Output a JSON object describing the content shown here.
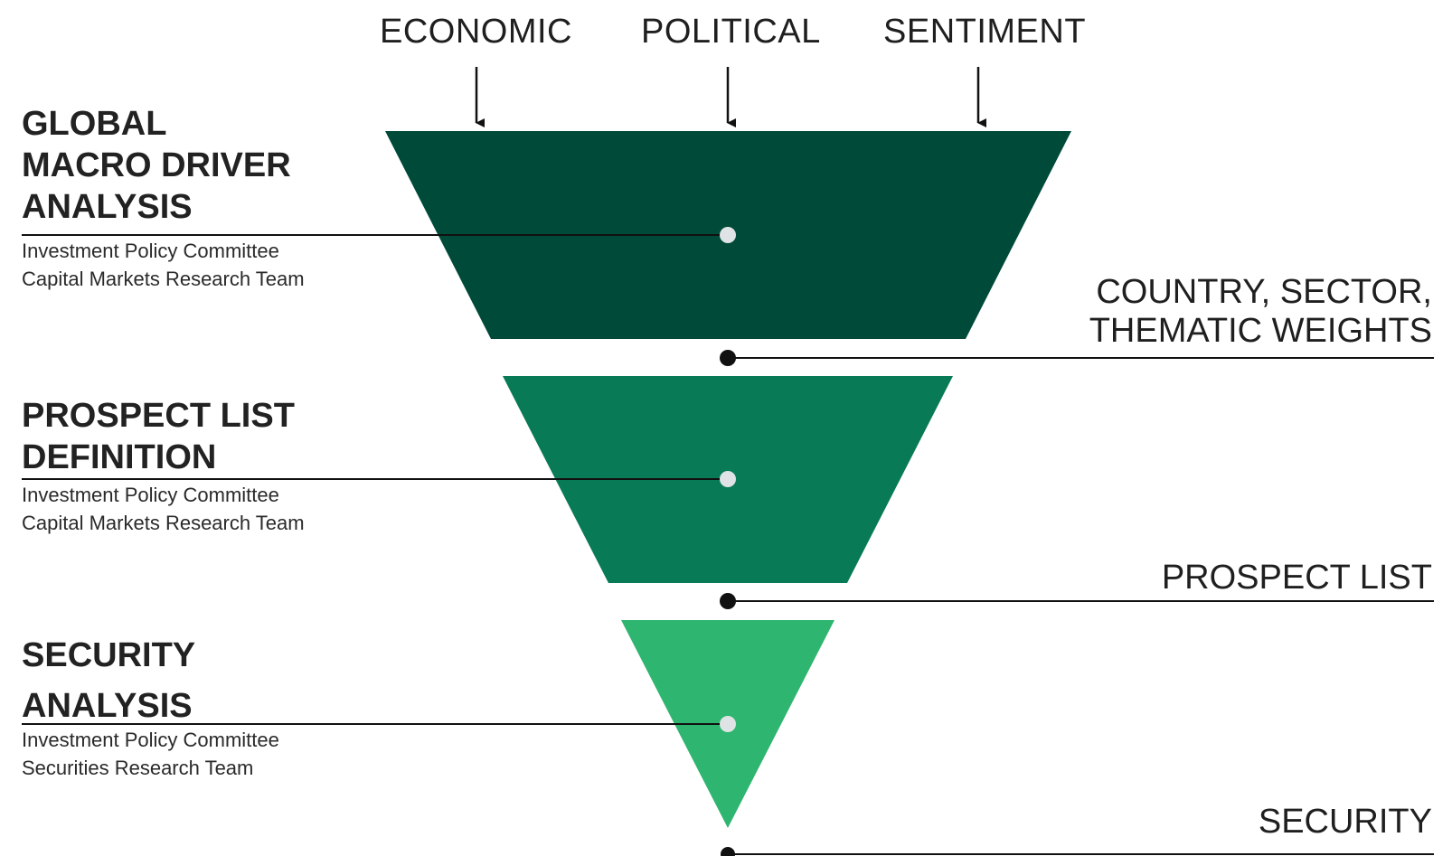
{
  "drivers": [
    "ECONOMIC",
    "POLITICAL",
    "SENTIMENT"
  ],
  "colors": {
    "stage1": "#004a3a",
    "stage2": "#087a55",
    "stage3": "#2eb56f",
    "marker": "#dfe3e6",
    "line": "#111111"
  },
  "stages": [
    {
      "title_lines": [
        "GLOBAL",
        "MACRO DRIVER",
        "ANALYSIS"
      ],
      "teams": [
        "Investment Policy Committee",
        "Capital Markets Research Team"
      ]
    },
    {
      "title_lines": [
        "PROSPECT LIST",
        "DEFINITION"
      ],
      "teams": [
        "Investment Policy Committee",
        "Capital Markets Research Team"
      ]
    },
    {
      "title_lines": [
        "SECURITY",
        "ANALYSIS"
      ],
      "teams": [
        "Investment Policy Committee",
        "Securities Research Team"
      ]
    }
  ],
  "outputs": [
    {
      "lines": [
        "COUNTRY, SECTOR,",
        "THEMATIC WEIGHTS"
      ]
    },
    {
      "lines": [
        "PROSPECT LIST"
      ]
    },
    {
      "lines": [
        "SECURITY"
      ]
    }
  ]
}
